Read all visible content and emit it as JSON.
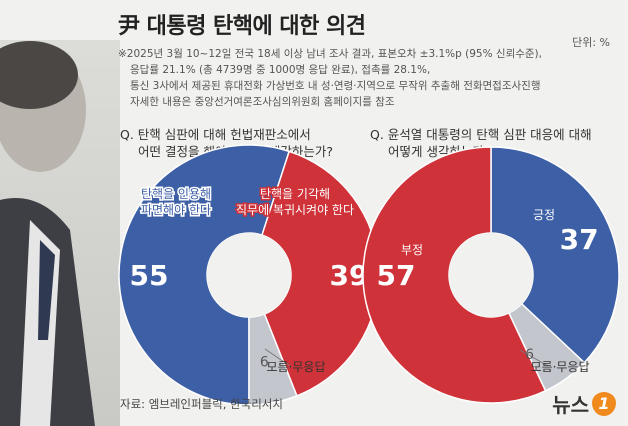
{
  "title": "尹 대통령 탄핵에 대한 의견",
  "unit": "단위: %",
  "notes": [
    "※2025년 3월 10~12일 전국 18세 이상 남녀 조사 결과, 표본오차 ±3.1%p (95% 신뢰수준),",
    "응답률 21.1% (총 4739명 중 1000명 응답 완료), 접촉률 28.1%,",
    "통신 3사에서 제공된 휴대전화 가상번호 내 성·연령·지역으로 무작위 추출해 전화면접조사진행",
    "자세한 내용은 중앙선거여론조사심의위원회 홈페이지를 참조"
  ],
  "source": "자료: 엠브레인퍼블릭, 한국리서치",
  "logo_text": "뉴스",
  "logo_badge": "1",
  "chart_data": [
    {
      "type": "pie",
      "question": [
        "Q. 탄핵 심판에 대해 헌법재판소에서",
        "어떤 결정을 해야 한다고 생각하는가?"
      ],
      "slices": [
        {
          "label": [
            "탄핵을 인용해",
            "파면해야 한다"
          ],
          "value": 55,
          "color": "#3d5fa6"
        },
        {
          "label": [
            "탄핵을 기각해",
            "직무에 복귀시켜야 한다"
          ],
          "value": 39,
          "color": "#cf3238"
        },
        {
          "label": [
            "모름·무응답"
          ],
          "value": 6,
          "color": "#c4c6ce"
        }
      ]
    },
    {
      "type": "pie",
      "question": [
        "Q. 윤석열 대통령의 탄핵 심판 대응에 대해",
        "어떻게 생각하는가?"
      ],
      "slices": [
        {
          "label": [
            "긍정"
          ],
          "value": 37,
          "color": "#3d5fa6"
        },
        {
          "label": [
            "모름·무응답"
          ],
          "value": 6,
          "color": "#c4c6ce"
        },
        {
          "label": [
            "부정"
          ],
          "value": 57,
          "color": "#cf3238"
        }
      ]
    }
  ]
}
